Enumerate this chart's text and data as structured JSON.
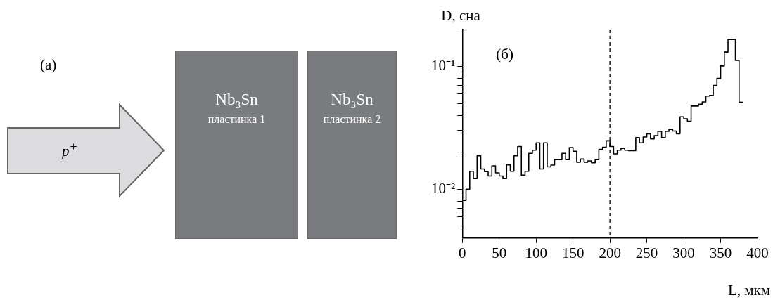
{
  "chart_data": [
    {
      "type": "other",
      "annotations": [
        "(а)",
        "p$^{+}$",
        "Nb₃Sn",
        "пластинка 1",
        "Nb₃Sn",
        "пластинка 2"
      ]
    },
    {
      "type": "step",
      "xlabel": "L, мкм",
      "ylabel": "D, сна",
      "annotations": [
        "(б)"
      ],
      "x": [
        0,
        5,
        10,
        15,
        20,
        25,
        30,
        35,
        40,
        45,
        50,
        55,
        60,
        65,
        70,
        75,
        80,
        85,
        90,
        95,
        100,
        105,
        110,
        115,
        120,
        125,
        130,
        135,
        140,
        145,
        150,
        155,
        160,
        165,
        170,
        175,
        180,
        185,
        190,
        195,
        200,
        205,
        210,
        215,
        220,
        225,
        230,
        235,
        240,
        245,
        250,
        255,
        260,
        265,
        270,
        275,
        280,
        285,
        290,
        295,
        300,
        305,
        310,
        315,
        320,
        325,
        330,
        335,
        340,
        345,
        350,
        355,
        360,
        365,
        370,
        375,
        380
      ],
      "series": [
        {
          "color": "#000000",
          "values": [
            0.0058,
            0.0081,
            0.01,
            0.014,
            0.0122,
            0.0187,
            0.0146,
            0.0139,
            0.0128,
            0.0155,
            0.0136,
            0.0128,
            0.0122,
            0.0158,
            0.014,
            0.0187,
            0.0223,
            0.013,
            0.014,
            0.0196,
            0.0208,
            0.0239,
            0.0146,
            0.0239,
            0.0152,
            0.0157,
            0.0174,
            0.0174,
            0.0196,
            0.0174,
            0.0218,
            0.0204,
            0.0166,
            0.0176,
            0.0166,
            0.017,
            0.0164,
            0.0174,
            0.0211,
            0.022,
            0.0248,
            0.0223,
            0.0194,
            0.0208,
            0.0215,
            0.0208,
            0.0206,
            0.0206,
            0.0263,
            0.0239,
            0.0266,
            0.0283,
            0.0257,
            0.0273,
            0.0296,
            0.0263,
            0.0296,
            0.0307,
            0.0298,
            0.0283,
            0.0389,
            0.0375,
            0.0358,
            0.0476,
            0.0476,
            0.0493,
            0.0515,
            0.0574,
            0.058,
            0.0702,
            0.0799,
            0.101,
            0.131,
            0.166,
            0.166,
            0.112,
            0.051
          ]
        }
      ],
      "xlim": [
        0,
        400
      ],
      "xticks": [
        0,
        50,
        100,
        150,
        200,
        250,
        300,
        350,
        400
      ],
      "ylim": [
        0.004,
        0.2
      ],
      "log": "y",
      "yticks": [
        {
          "value": 0.005,
          "label": null
        },
        {
          "value": 0.006,
          "label": null
        },
        {
          "value": 0.007,
          "label": null
        },
        {
          "value": 0.008,
          "label": null
        },
        {
          "value": 0.009,
          "label": null
        },
        {
          "value": 0.01,
          "label": "10⁻²"
        },
        {
          "value": 0.02,
          "label": null
        },
        {
          "value": 0.03,
          "label": null
        },
        {
          "value": 0.04,
          "label": null
        },
        {
          "value": 0.05,
          "label": null
        },
        {
          "value": 0.06,
          "label": null
        },
        {
          "value": 0.07,
          "label": null
        },
        {
          "value": 0.08,
          "label": null
        },
        {
          "value": 0.09,
          "label": null
        },
        {
          "value": 0.1,
          "label": "10⁻¹"
        },
        {
          "value": 0.2,
          "label": null
        }
      ],
      "ref_lines": [
        {
          "axis": "x",
          "value": 200,
          "line_style": "dashed",
          "color": "#000000"
        }
      ],
      "marker": "none",
      "grid": false,
      "legend": false
    }
  ]
}
